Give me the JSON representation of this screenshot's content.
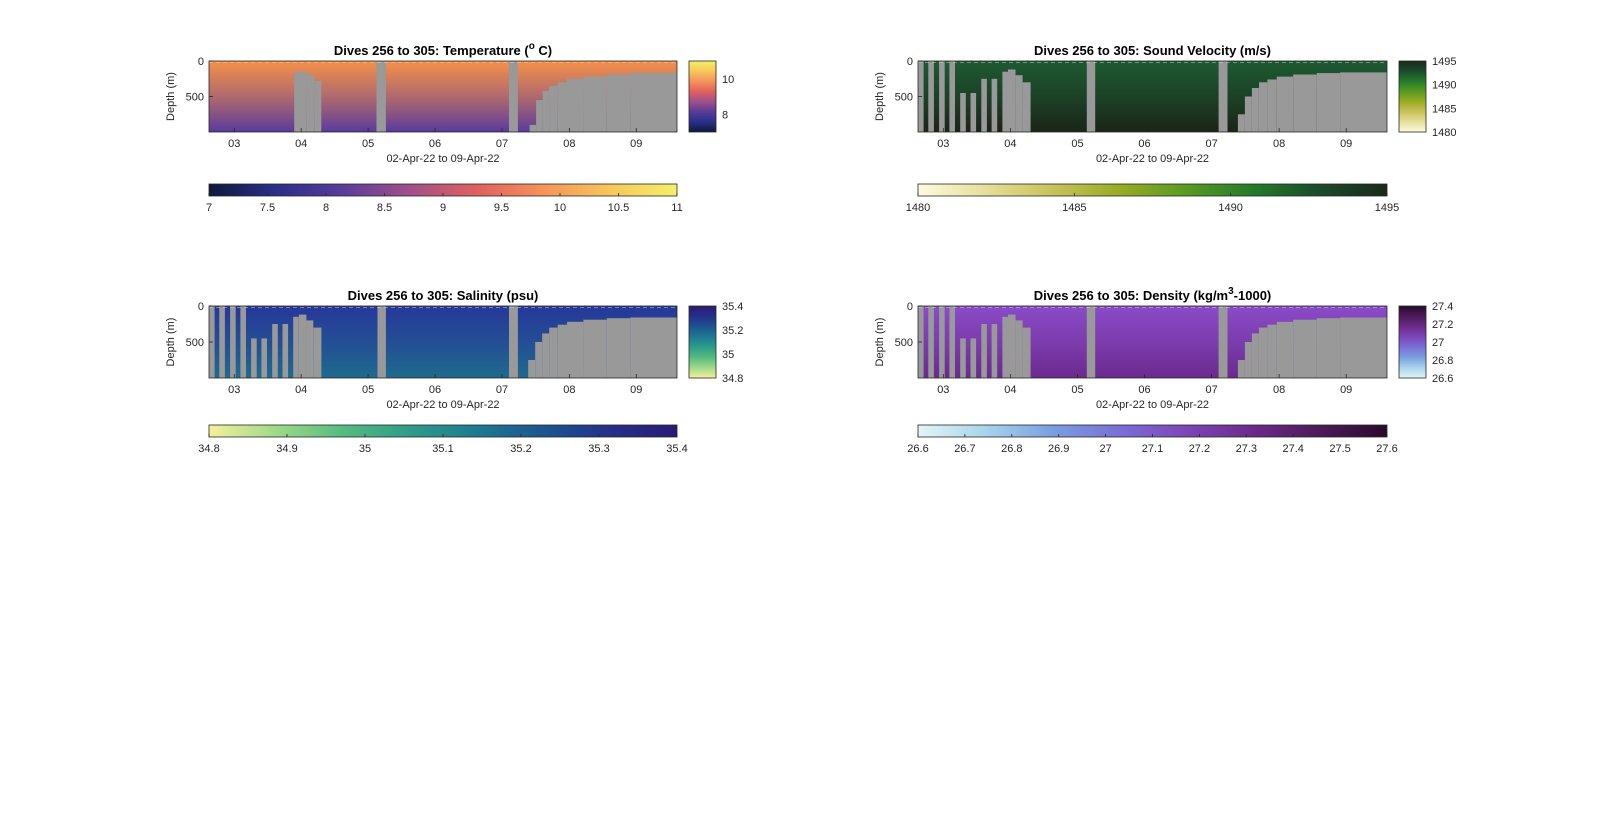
{
  "figure": {
    "background": "#ffffff",
    "land_color": "#999999"
  },
  "chart_data": [
    {
      "type": "heatmap",
      "title": "Dives 256 to 305: Temperature (",
      "title_sup": "o",
      "title_tail": " C)",
      "ylabel": "Depth (m)",
      "xlabel": "02-Apr-22 to 09-Apr-22",
      "x_ticks": [
        "03",
        "04",
        "05",
        "06",
        "07",
        "08",
        "09"
      ],
      "y_ticks": [
        "0",
        "500"
      ],
      "ylim": [
        0,
        1000
      ],
      "colormap": [
        "#0d1a3a",
        "#2a2f8a",
        "#5a3c9a",
        "#a0508a",
        "#e0605f",
        "#f5935a",
        "#f8c65a",
        "#f3f06a"
      ],
      "side_colorbar": {
        "ticks": [
          "10",
          "8"
        ]
      },
      "bottom_colorbar": {
        "ticks": [
          "7",
          "7.5",
          "8",
          "8.5",
          "9",
          "9.5",
          "10",
          "10.5",
          "11"
        ]
      },
      "surface_color": "#f59048",
      "deep_color": "#5a3b9c",
      "gaps": "temperature"
    },
    {
      "type": "heatmap",
      "title": "Dives 256 to 305: Sound Velocity (m/s)",
      "ylabel": "Depth (m)",
      "xlabel": "02-Apr-22 to 09-Apr-22",
      "x_ticks": [
        "03",
        "04",
        "05",
        "06",
        "07",
        "08",
        "09"
      ],
      "y_ticks": [
        "0",
        "500"
      ],
      "ylim": [
        0,
        1000
      ],
      "colormap": [
        "#fdfbe0",
        "#e6df9a",
        "#c9c259",
        "#9aab24",
        "#5a9a21",
        "#247b2a",
        "#1b4a2a",
        "#1a2a1a"
      ],
      "side_colorbar": {
        "ticks": [
          "1495",
          "1490",
          "1485",
          "1480"
        ]
      },
      "bottom_colorbar": {
        "ticks": [
          "1480",
          "1485",
          "1490",
          "1495"
        ]
      },
      "surface_color": "#1d5a32",
      "deep_color": "#1b2418",
      "gaps": "other"
    },
    {
      "type": "heatmap",
      "title": "Dives 256 to 305: Salinity (psu)",
      "ylabel": "Depth (m)",
      "xlabel": "02-Apr-22 to 09-Apr-22",
      "x_ticks": [
        "03",
        "04",
        "05",
        "06",
        "07",
        "08",
        "09"
      ],
      "y_ticks": [
        "0",
        "500"
      ],
      "ylim": [
        0,
        1000
      ],
      "colormap": [
        "#f6f09a",
        "#9fd98a",
        "#56bb7e",
        "#2e9c8a",
        "#1e7a90",
        "#1c558f",
        "#24308a",
        "#2a1a75"
      ],
      "side_colorbar": {
        "ticks": [
          "35.4",
          "35.2",
          "35",
          "34.8"
        ]
      },
      "bottom_colorbar": {
        "ticks": [
          "34.8",
          "34.9",
          "35",
          "35.1",
          "35.2",
          "35.3",
          "35.4"
        ]
      },
      "surface_color": "#27379a",
      "deep_color": "#1f6a8e",
      "gaps": "other"
    },
    {
      "type": "heatmap",
      "title": "Dives 256 to 305: Density (kg/m",
      "title_sup": "3",
      "title_tail": "-1000)",
      "ylabel": "Depth (m)",
      "xlabel": "02-Apr-22 to 09-Apr-22",
      "x_ticks": [
        "03",
        "04",
        "05",
        "06",
        "07",
        "08",
        "09"
      ],
      "y_ticks": [
        "0",
        "500"
      ],
      "ylim": [
        0,
        1000
      ],
      "colormap": [
        "#e4f5f4",
        "#a8d4ec",
        "#7a9fe0",
        "#7a6fd6",
        "#7c46b8",
        "#6c2a8a",
        "#4d1a5a",
        "#2a0a2a"
      ],
      "side_colorbar": {
        "ticks": [
          "27.4",
          "27.2",
          "27",
          "26.8",
          "26.6"
        ]
      },
      "bottom_colorbar": {
        "ticks": [
          "26.6",
          "26.7",
          "26.8",
          "26.9",
          "27",
          "27.1",
          "27.2",
          "27.3",
          "27.4",
          "27.5",
          "27.6"
        ]
      },
      "surface_color": "#8a4bc8",
      "deep_color": "#6a2a8e",
      "gaps": "other"
    }
  ]
}
